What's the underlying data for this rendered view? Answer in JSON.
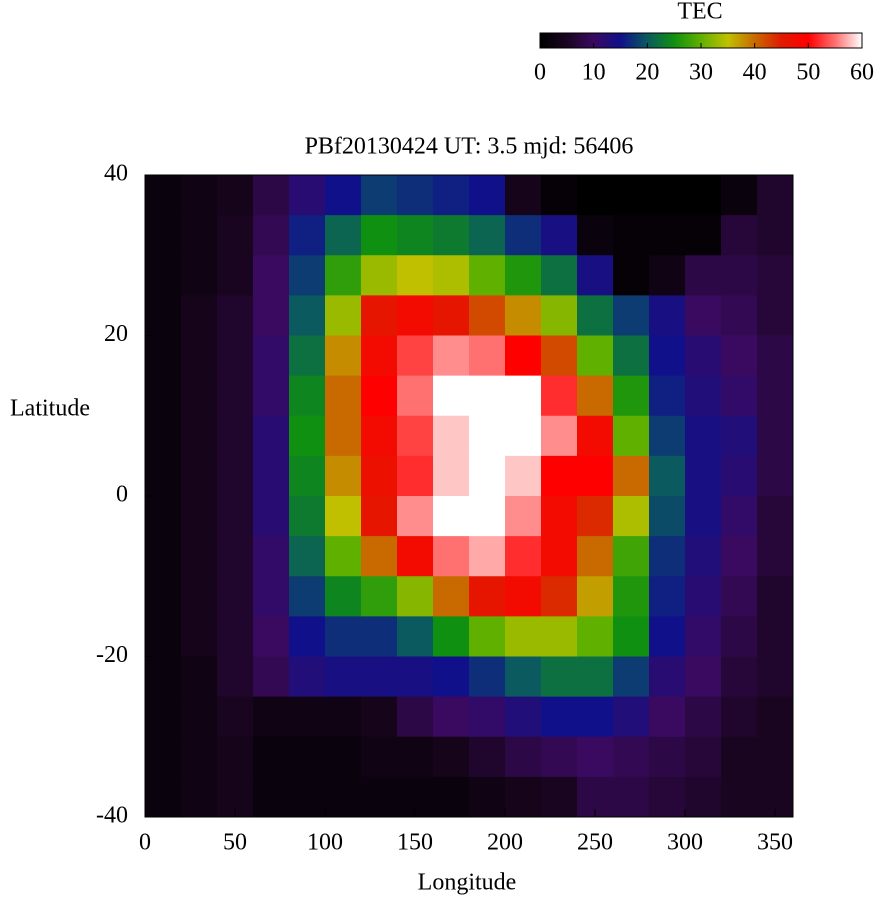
{
  "chart_data": {
    "type": "heatmap",
    "title": "PBf20130424  UT: 3.5  mjd: 56406",
    "x_label": "Longitude",
    "y_label": "Latitude",
    "colorbar_label": "TEC",
    "x": [
      10,
      30,
      50,
      70,
      90,
      110,
      130,
      150,
      170,
      190,
      210,
      230,
      250,
      270,
      290,
      310,
      330,
      350
    ],
    "y": [
      37.5,
      32.5,
      27.5,
      22.5,
      17.5,
      12.5,
      7.5,
      2.5,
      -2.5,
      -7.5,
      -12.5,
      -17.5,
      -22.5,
      -27.5,
      -32.5,
      -37.5
    ],
    "values": [
      [
        2,
        3,
        4,
        8,
        12,
        15,
        18,
        17,
        16,
        15,
        4,
        1,
        0,
        0,
        0,
        0,
        2,
        6
      ],
      [
        2,
        3,
        5,
        9,
        16,
        21,
        25,
        24,
        23,
        21,
        17,
        14,
        2,
        1,
        1,
        1,
        7,
        6
      ],
      [
        2,
        3,
        5,
        10,
        18,
        27,
        33,
        35,
        34,
        30,
        26,
        22,
        14,
        1,
        3,
        8,
        8,
        7
      ],
      [
        2,
        4,
        6,
        10,
        20,
        33,
        46,
        48,
        46,
        42,
        38,
        32,
        22,
        18,
        14,
        10,
        9,
        7
      ],
      [
        2,
        4,
        6,
        11,
        22,
        38,
        48,
        53,
        56,
        55,
        50,
        42,
        30,
        22,
        15,
        12,
        10,
        8
      ],
      [
        2,
        4,
        6,
        11,
        24,
        40,
        50,
        55,
        60,
        60,
        60,
        52,
        40,
        26,
        16,
        13,
        11,
        8
      ],
      [
        2,
        4,
        6,
        12,
        25,
        40,
        48,
        53,
        58,
        60,
        60,
        56,
        48,
        30,
        18,
        14,
        13,
        8
      ],
      [
        2,
        4,
        6,
        12,
        24,
        38,
        47,
        52,
        58,
        60,
        58,
        50,
        50,
        40,
        20,
        14,
        12,
        8
      ],
      [
        2,
        4,
        6,
        12,
        23,
        35,
        46,
        56,
        60,
        60,
        56,
        48,
        44,
        34,
        19,
        14,
        11,
        7
      ],
      [
        2,
        4,
        6,
        11,
        21,
        30,
        40,
        48,
        55,
        57,
        52,
        48,
        40,
        28,
        17,
        13,
        10,
        7
      ],
      [
        2,
        4,
        6,
        11,
        18,
        24,
        27,
        32,
        40,
        46,
        48,
        44,
        37,
        26,
        16,
        12,
        9,
        6
      ],
      [
        2,
        4,
        6,
        10,
        15,
        17,
        17,
        20,
        25,
        30,
        33,
        33,
        30,
        25,
        15,
        11,
        8,
        6
      ],
      [
        2,
        3,
        6,
        9,
        13,
        14,
        14,
        14,
        15,
        17,
        20,
        22,
        22,
        18,
        12,
        10,
        7,
        6
      ],
      [
        2,
        3,
        5,
        3,
        3,
        3,
        4,
        8,
        10,
        11,
        13,
        15,
        15,
        13,
        10,
        8,
        6,
        5
      ],
      [
        2,
        3,
        4,
        2,
        2,
        2,
        3,
        3,
        4,
        6,
        8,
        9,
        10,
        9,
        8,
        7,
        5,
        5
      ],
      [
        2,
        3,
        4,
        2,
        2,
        2,
        2,
        2,
        2,
        3,
        4,
        5,
        8,
        8,
        7,
        6,
        5,
        5
      ]
    ],
    "xlim": [
      0,
      360
    ],
    "ylim": [
      -40,
      40
    ],
    "xticks": [
      0,
      50,
      100,
      150,
      200,
      250,
      300,
      350
    ],
    "yticks": [
      40,
      20,
      0,
      -20,
      -40
    ],
    "zlim": [
      0,
      60
    ],
    "zticks": [
      0,
      10,
      20,
      30,
      40,
      50,
      60
    ],
    "colormap": [
      "#000000",
      "#1a0520",
      "#3a0a60",
      "#10108a",
      "#0a5a60",
      "#109010",
      "#60b000",
      "#c0c000",
      "#c86a00",
      "#e01a00",
      "#ff0000",
      "#ff7070",
      "#ffffff"
    ]
  }
}
